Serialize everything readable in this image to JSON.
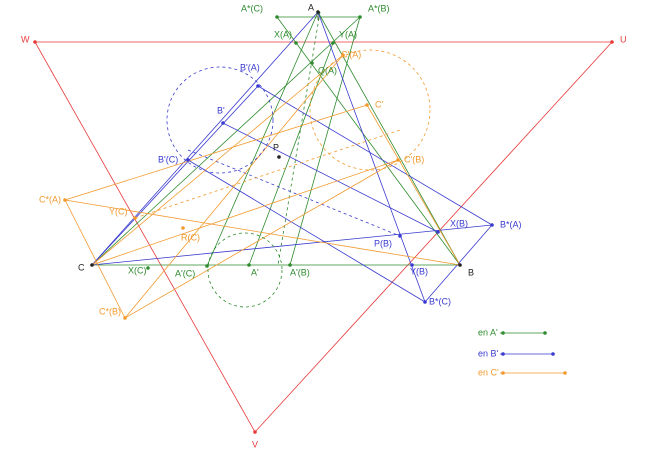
{
  "points": {
    "W": "W",
    "U": "U",
    "V": "V",
    "A": "A",
    "B": "B",
    "C": "C",
    "P": "P",
    "A_star_C": "A*(C)",
    "A_star_B": "A*(B)",
    "X_A": "X(A)",
    "Y_A": "Y(A)",
    "Q_A": "Q(A)",
    "C_prime_A": "C'(A)",
    "B_prime_A": "B'(A)",
    "B_prime": "B'",
    "C_prime": "C'",
    "C_prime_B": "C'(B)",
    "B_prime_C": "B'(C)",
    "C_star_A": "C*(A)",
    "Y_C": "Y(C)",
    "R_C": "R(C)",
    "X_C": "X(C)",
    "A_prime_C": "A'(C)",
    "A_prime": "A'",
    "A_prime_B": "A'(B)",
    "C_star_B": "C*(B)",
    "P_B": "P(B)",
    "X_B": "X(B)",
    "B_star_A": "B*(A)",
    "Y_B": "Y(B)",
    "B_star_C": "B*(C)"
  },
  "legend": [
    "en A'",
    "en B'",
    "en C'"
  ]
}
